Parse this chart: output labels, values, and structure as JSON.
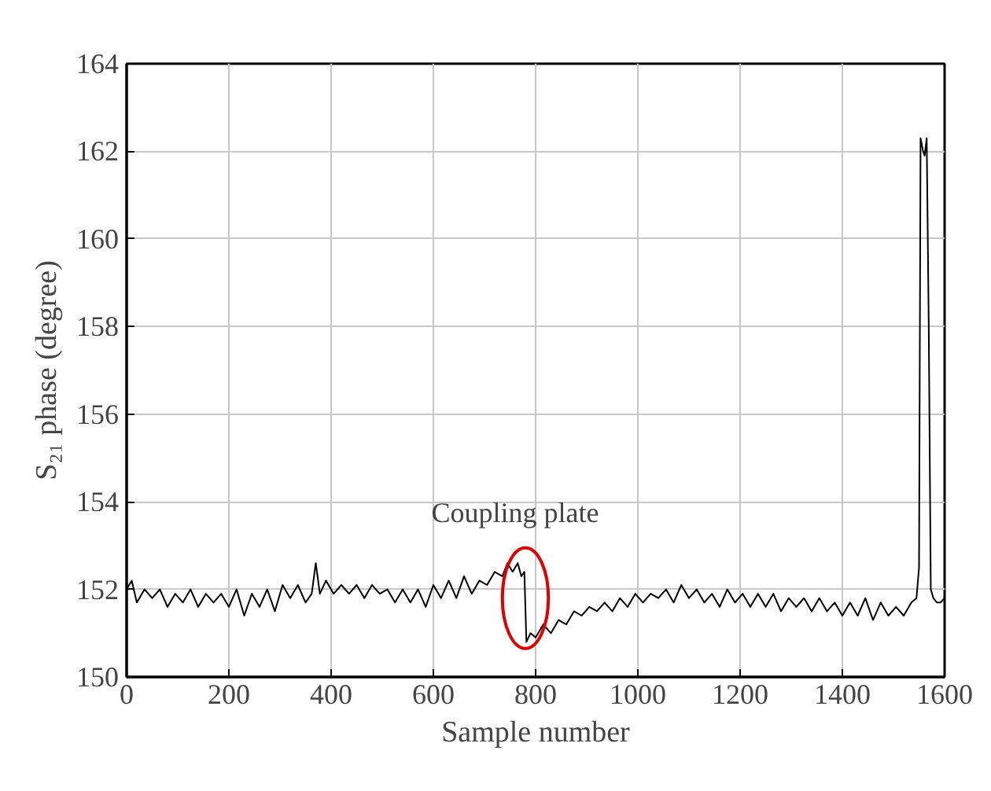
{
  "chart_data": {
    "type": "line",
    "xlabel": "Sample number",
    "ylabel": "S₂₁ phase (degree)",
    "xlim": [
      0,
      1600
    ],
    "ylim": [
      150,
      164
    ],
    "xticks": [
      0,
      200,
      400,
      600,
      800,
      1000,
      1200,
      1400,
      1600
    ],
    "yticks": [
      150,
      152,
      154,
      156,
      158,
      160,
      162,
      164
    ],
    "grid": true,
    "marker": "none",
    "line_style": "solid",
    "annotations": [
      {
        "text": "Coupling plate",
        "x": 780,
        "y": 151.8
      }
    ],
    "series": [
      {
        "color": "#000000",
        "x": [
          0,
          10,
          20,
          35,
          50,
          65,
          80,
          95,
          110,
          125,
          140,
          155,
          170,
          185,
          200,
          215,
          230,
          245,
          260,
          275,
          290,
          305,
          320,
          335,
          350,
          362,
          370,
          378,
          390,
          405,
          420,
          435,
          450,
          465,
          480,
          495,
          510,
          525,
          540,
          555,
          570,
          585,
          600,
          615,
          630,
          645,
          660,
          675,
          690,
          705,
          720,
          735,
          745,
          755,
          765,
          772,
          778,
          782,
          790,
          800,
          815,
          830,
          845,
          860,
          875,
          890,
          905,
          920,
          935,
          950,
          965,
          980,
          995,
          1010,
          1025,
          1040,
          1055,
          1070,
          1085,
          1100,
          1115,
          1130,
          1145,
          1160,
          1175,
          1190,
          1205,
          1220,
          1235,
          1250,
          1265,
          1280,
          1295,
          1310,
          1325,
          1340,
          1355,
          1370,
          1385,
          1400,
          1415,
          1430,
          1445,
          1460,
          1475,
          1490,
          1505,
          1520,
          1535,
          1545,
          1550,
          1553,
          1558,
          1561,
          1565,
          1569,
          1573,
          1578,
          1585,
          1592,
          1600
        ],
        "values": [
          152.0,
          152.2,
          151.7,
          152.0,
          151.8,
          152.0,
          151.6,
          151.9,
          151.7,
          152.0,
          151.6,
          151.9,
          151.7,
          151.9,
          151.6,
          152.0,
          151.4,
          151.9,
          151.6,
          152.0,
          151.5,
          152.1,
          151.8,
          152.1,
          151.7,
          151.9,
          152.6,
          151.9,
          152.2,
          151.9,
          152.1,
          151.9,
          152.1,
          151.8,
          152.1,
          151.9,
          152.0,
          151.7,
          152.0,
          151.7,
          152.0,
          151.6,
          152.1,
          151.8,
          152.2,
          151.8,
          152.3,
          151.9,
          152.2,
          152.1,
          152.4,
          152.3,
          152.6,
          152.4,
          152.6,
          152.3,
          152.4,
          150.8,
          151.0,
          150.9,
          151.2,
          151.0,
          151.3,
          151.2,
          151.5,
          151.4,
          151.6,
          151.5,
          151.7,
          151.5,
          151.8,
          151.6,
          151.9,
          151.7,
          151.9,
          151.8,
          152.0,
          151.7,
          152.1,
          151.8,
          152.0,
          151.7,
          151.9,
          151.6,
          152.0,
          151.7,
          151.9,
          151.6,
          151.9,
          151.6,
          151.9,
          151.5,
          151.8,
          151.6,
          151.8,
          151.5,
          151.8,
          151.5,
          151.7,
          151.4,
          151.7,
          151.4,
          151.8,
          151.3,
          151.7,
          151.4,
          151.6,
          151.4,
          151.7,
          151.8,
          152.5,
          162.3,
          162.0,
          161.9,
          162.3,
          158.0,
          152.0,
          151.8,
          151.7,
          151.7,
          151.8
        ]
      }
    ]
  }
}
